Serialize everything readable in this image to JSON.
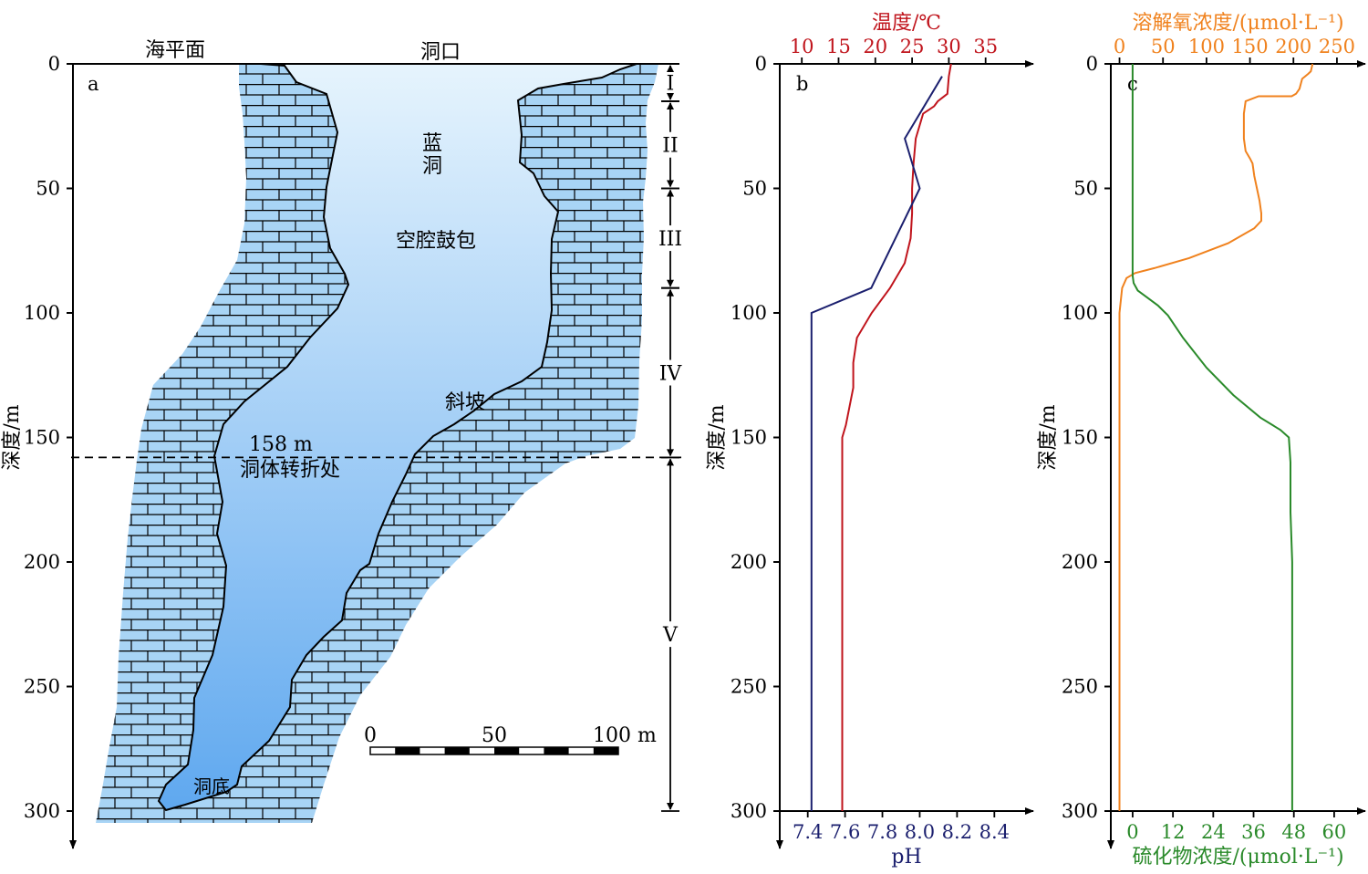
{
  "colors": {
    "limestone": "#a8d4f5",
    "water_top": "#e6f4fd",
    "water_bottom": "#5fa8ef",
    "temperature": "#c0141c",
    "ph": "#1b1f6e",
    "oxygen": "#f0821e",
    "sulfide": "#2a8a2a"
  },
  "panel_a": {
    "letter": "a",
    "sea_level_label": "海平面",
    "mouth_label": "洞口",
    "cave_label_1": "蓝",
    "cave_label_2": "洞",
    "bulge_label": "空腔鼓包",
    "slope_label": "斜坡",
    "turn_depth_label": "158 m",
    "turn_label": "洞体转折处",
    "bottom_label": "洞底",
    "turn_depth": 158,
    "ylabel": "深度/m",
    "yticks": [
      0,
      50,
      100,
      150,
      200,
      250,
      300
    ],
    "scale_bar": {
      "labels": [
        "0",
        "50",
        "100 m"
      ],
      "values": [
        0,
        50,
        100
      ]
    },
    "zones": [
      {
        "label": "I",
        "top": 0,
        "bottom": 15
      },
      {
        "label": "II",
        "top": 15,
        "bottom": 50
      },
      {
        "label": "III",
        "top": 50,
        "bottom": 90
      },
      {
        "label": "IV",
        "top": 90,
        "bottom": 158
      },
      {
        "label": "V",
        "top": 158,
        "bottom": 300
      }
    ]
  },
  "chart_data": [
    {
      "type": "line",
      "panel": "b",
      "ylabel": "深度/m",
      "ylim": [
        0,
        300
      ],
      "yticks": [
        0,
        50,
        100,
        150,
        200,
        250,
        300
      ],
      "series": [
        {
          "name": "温度/℃",
          "axis": "top",
          "xlim": [
            7,
            40
          ],
          "xticks": [
            10,
            15,
            20,
            25,
            30,
            35
          ],
          "points": [
            [
              30.3,
              0
            ],
            [
              30.0,
              5
            ],
            [
              29.8,
              12
            ],
            [
              28.5,
              15
            ],
            [
              28.0,
              17
            ],
            [
              26.5,
              20
            ],
            [
              25.5,
              30
            ],
            [
              25.2,
              40
            ],
            [
              25.0,
              50
            ],
            [
              25.0,
              60
            ],
            [
              24.8,
              70
            ],
            [
              24.0,
              80
            ],
            [
              22.0,
              90
            ],
            [
              19.5,
              100
            ],
            [
              17.5,
              110
            ],
            [
              17.0,
              120
            ],
            [
              17.0,
              130
            ],
            [
              16.0,
              145
            ],
            [
              15.5,
              150
            ],
            [
              15.5,
              160
            ],
            [
              15.5,
              200
            ],
            [
              15.5,
              250
            ],
            [
              15.5,
              300
            ]
          ]
        },
        {
          "name": "pH",
          "axis": "bottom",
          "xlim": [
            7.25,
            8.55
          ],
          "xticks": [
            7.4,
            7.6,
            7.8,
            8.0,
            8.2,
            8.4
          ],
          "points": [
            [
              8.12,
              5
            ],
            [
              7.92,
              30
            ],
            [
              8.0,
              50
            ],
            [
              7.74,
              90
            ],
            [
              7.42,
              100
            ],
            [
              7.42,
              150
            ],
            [
              7.42,
              200
            ],
            [
              7.42,
              250
            ],
            [
              7.42,
              300
            ]
          ]
        }
      ]
    },
    {
      "type": "line",
      "panel": "c",
      "ylabel": "深度/m",
      "ylim": [
        0,
        300
      ],
      "yticks": [
        0,
        50,
        100,
        150,
        200,
        250,
        300
      ],
      "series": [
        {
          "name": "溶解氧浓度/(μmol·L⁻¹)",
          "axis": "top",
          "xlim": [
            -10,
            270
          ],
          "xticks": [
            0,
            50,
            100,
            150,
            200,
            250
          ],
          "points": [
            [
              222,
              0
            ],
            [
              220,
              3
            ],
            [
              217,
              4
            ],
            [
              210,
              6
            ],
            [
              207,
              10
            ],
            [
              203,
              12
            ],
            [
              198,
              13
            ],
            [
              160,
              13
            ],
            [
              145,
              15
            ],
            [
              143,
              20
            ],
            [
              143,
              30
            ],
            [
              145,
              35
            ],
            [
              150,
              38
            ],
            [
              153,
              40
            ],
            [
              155,
              45
            ],
            [
              158,
              50
            ],
            [
              161,
              55
            ],
            [
              163,
              60
            ],
            [
              163,
              63
            ],
            [
              155,
              66
            ],
            [
              125,
              72
            ],
            [
              80,
              78
            ],
            [
              40,
              82
            ],
            [
              18,
              84
            ],
            [
              8,
              86
            ],
            [
              3,
              90
            ],
            [
              0,
              100
            ],
            [
              0,
              150
            ],
            [
              0,
              200
            ],
            [
              0,
              250
            ],
            [
              0,
              300
            ]
          ]
        },
        {
          "name": "硫化物浓度/(μmol·L⁻¹)",
          "axis": "bottom",
          "xlim": [
            -6.5,
            66
          ],
          "xticks": [
            0,
            12,
            24,
            36,
            48,
            60
          ],
          "points": [
            [
              0,
              0
            ],
            [
              0,
              50
            ],
            [
              0,
              85
            ],
            [
              0.3,
              88
            ],
            [
              1.5,
              91
            ],
            [
              4.5,
              94
            ],
            [
              7.5,
              97
            ],
            [
              10.5,
              101
            ],
            [
              15,
              110
            ],
            [
              22,
              122
            ],
            [
              30,
              133
            ],
            [
              38,
              142
            ],
            [
              44,
              147
            ],
            [
              46.5,
              150
            ],
            [
              47,
              160
            ],
            [
              47,
              180
            ],
            [
              47.5,
              200
            ],
            [
              47.5,
              250
            ],
            [
              47.5,
              300
            ]
          ]
        }
      ]
    }
  ]
}
